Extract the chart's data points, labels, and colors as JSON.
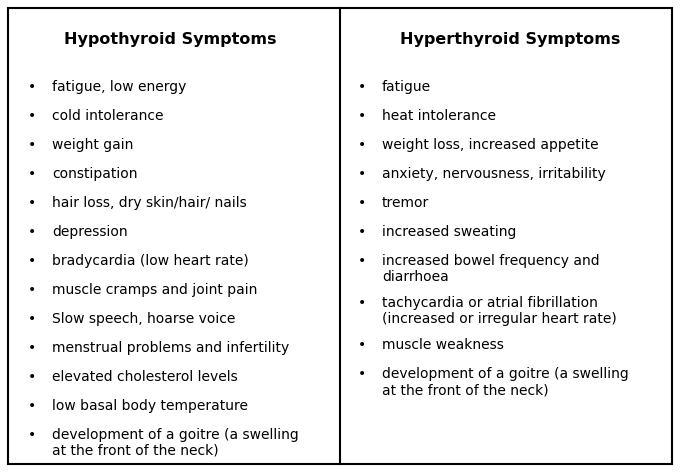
{
  "left_header": "Hypothyroid Symptoms",
  "right_header": "Hyperthyroid Symptoms",
  "left_items": [
    [
      "fatigue, low energy"
    ],
    [
      "cold intolerance"
    ],
    [
      "weight gain"
    ],
    [
      "constipation"
    ],
    [
      "hair loss, dry skin/hair/ nails"
    ],
    [
      "depression"
    ],
    [
      "bradycardia (low heart rate)"
    ],
    [
      "muscle cramps and joint pain"
    ],
    [
      "Slow speech, hoarse voice"
    ],
    [
      "menstrual problems and infertility"
    ],
    [
      "elevated cholesterol levels"
    ],
    [
      "low basal body temperature"
    ],
    [
      "development of a goitre (a swelling",
      "at the front of the neck)"
    ]
  ],
  "right_items": [
    [
      "fatigue"
    ],
    [
      "heat intolerance"
    ],
    [
      "weight loss, increased appetite"
    ],
    [
      "anxiety, nervousness, irritability"
    ],
    [
      "tremor"
    ],
    [
      "increased sweating"
    ],
    [
      "increased bowel frequency and",
      "diarrhoea"
    ],
    [
      "tachycardia or atrial fibrillation",
      "(increased or irregular heart rate)"
    ],
    [
      "muscle weakness"
    ],
    [
      "development of a goitre (a swelling",
      "at the front of the neck)"
    ]
  ],
  "bg_color": "#ffffff",
  "border_color": "#000000",
  "text_color": "#000000",
  "header_fontsize": 11.5,
  "item_fontsize": 10,
  "bullet": "•",
  "fig_width": 6.8,
  "fig_height": 4.72,
  "dpi": 100
}
